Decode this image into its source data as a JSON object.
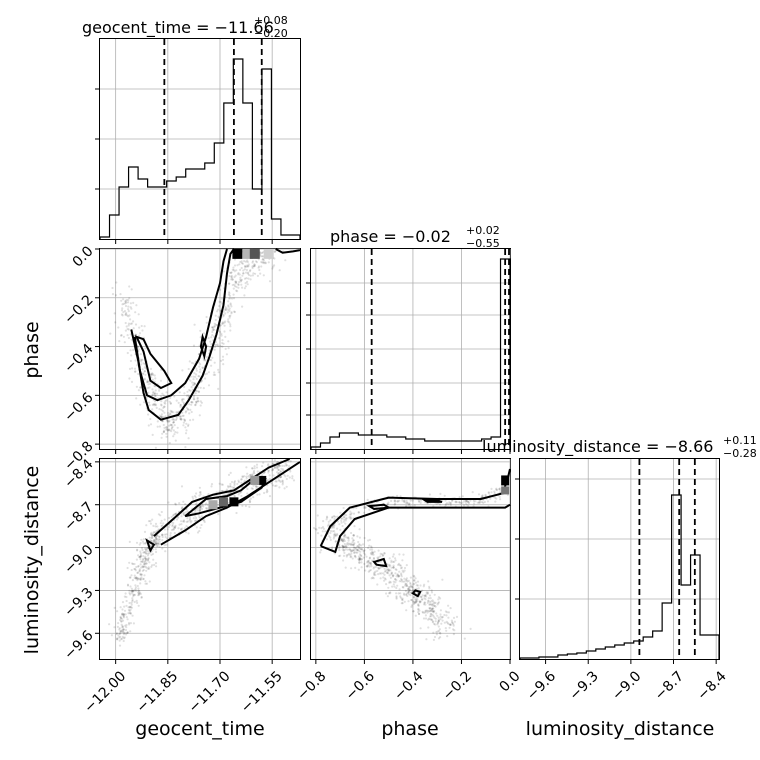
{
  "chart_data": {
    "type": "corner",
    "parameters": [
      "geocent_time",
      "phase",
      "luminosity_distance"
    ],
    "titles": [
      {
        "param": "geocent_time",
        "base": "geocent_time = −11.66",
        "sup": "+0.08",
        "sub": "−0.20"
      },
      {
        "param": "phase",
        "base": "phase = −0.02",
        "sup": "+0.02",
        "sub": "−0.55"
      },
      {
        "param": "luminosity_distance",
        "base": "luminosity_distance = −8.66",
        "sup": "+0.11",
        "sub": "−0.28"
      }
    ],
    "axis_labels": {
      "x": [
        "geocent_time",
        "phase",
        "luminosity_distance"
      ],
      "y": [
        "phase",
        "luminosity_distance"
      ]
    },
    "ranges": {
      "geocent_time": [
        -12.045,
        -11.47
      ],
      "phase": [
        -0.82,
        0.0
      ],
      "luminosity_distance": [
        -9.78,
        -8.38
      ]
    },
    "ticks": {
      "geocent_time": [
        -12.0,
        -11.85,
        -11.7,
        -11.55
      ],
      "phase": [
        -0.8,
        -0.6,
        -0.4,
        -0.2,
        0.0
      ],
      "luminosity_distance": [
        -9.6,
        -9.3,
        -9.0,
        -8.7,
        -8.4
      ]
    },
    "tick_labels": {
      "geocent_time": [
        "−12.00",
        "−11.85",
        "−11.70",
        "−11.55"
      ],
      "phase": [
        "−0.8",
        "−0.6",
        "−0.4",
        "−0.2",
        "0.0"
      ],
      "luminosity_distance": [
        "−9.6",
        "−9.3",
        "−9.0",
        "−8.7",
        "−8.4"
      ]
    },
    "quantile_lines": {
      "geocent_time": [
        -11.86,
        -11.66,
        -11.58
      ],
      "phase": [
        -0.57,
        -0.02,
        0.0
      ],
      "luminosity_distance": [
        -8.94,
        -8.66,
        -8.55
      ]
    },
    "histograms": {
      "geocent_time": [
        0.01,
        0.12,
        0.26,
        0.36,
        0.3,
        0.26,
        0.26,
        0.29,
        0.31,
        0.35,
        0.35,
        0.38,
        0.48,
        0.68,
        0.9,
        0.68,
        0.25,
        0.85,
        0.1,
        0.02,
        0.02
      ],
      "phase": [
        0.01,
        0.03,
        0.06,
        0.08,
        0.08,
        0.07,
        0.07,
        0.07,
        0.06,
        0.06,
        0.05,
        0.05,
        0.04,
        0.04,
        0.04,
        0.04,
        0.04,
        0.04,
        0.05,
        0.06,
        0.95
      ],
      "luminosity_distance": [
        0.005,
        0.005,
        0.01,
        0.01,
        0.02,
        0.025,
        0.03,
        0.04,
        0.05,
        0.06,
        0.07,
        0.08,
        0.09,
        0.11,
        0.14,
        0.28,
        0.82,
        0.37,
        0.52,
        0.12,
        0.12
      ]
    },
    "grid": true,
    "color": "#000000"
  }
}
